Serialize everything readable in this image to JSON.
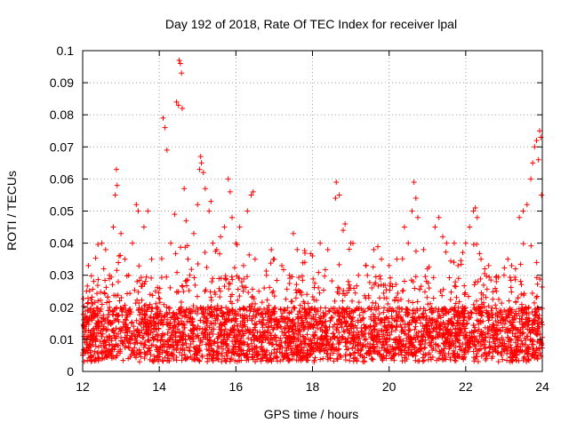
{
  "chart_data": {
    "type": "scatter",
    "title": "Day 192 of 2018, Rate Of TEC Index for receiver lpal",
    "xlabel": "GPS time / hours",
    "ylabel": "ROTI / TECUs",
    "xlim": [
      12,
      24
    ],
    "ylim": [
      0,
      0.1
    ],
    "x_ticks": [
      12,
      14,
      16,
      18,
      20,
      22,
      24
    ],
    "x_tick_labels": [
      "12",
      "14",
      "16",
      "18",
      "20",
      "22",
      "24"
    ],
    "y_ticks": [
      0,
      0.01,
      0.02,
      0.03,
      0.04,
      0.05,
      0.06,
      0.07,
      0.08,
      0.09,
      0.1
    ],
    "y_tick_labels": [
      "0",
      "0.01",
      "0.02",
      "0.03",
      "0.04",
      "0.05",
      "0.06",
      "0.07",
      "0.08",
      "0.09",
      "0.1"
    ],
    "grid": true,
    "marker": "+",
    "series": [
      {
        "name": "ROTI",
        "color": "#ff0000",
        "points": [
          [
            12.05,
            0.014
          ],
          [
            12.1,
            0.025
          ],
          [
            12.15,
            0.033
          ],
          [
            12.2,
            0.012
          ],
          [
            12.3,
            0.018
          ],
          [
            12.4,
            0.022
          ],
          [
            12.5,
            0.04
          ],
          [
            12.55,
            0.032
          ],
          [
            12.6,
            0.038
          ],
          [
            12.7,
            0.03
          ],
          [
            12.8,
            0.045
          ],
          [
            12.85,
            0.055
          ],
          [
            12.88,
            0.063
          ],
          [
            12.9,
            0.058
          ],
          [
            12.95,
            0.036
          ],
          [
            13.0,
            0.043
          ],
          [
            13.1,
            0.035
          ],
          [
            13.2,
            0.03
          ],
          [
            13.3,
            0.04
          ],
          [
            13.4,
            0.052
          ],
          [
            13.45,
            0.05
          ],
          [
            13.6,
            0.045
          ],
          [
            13.7,
            0.05
          ],
          [
            13.8,
            0.035
          ],
          [
            13.9,
            0.025
          ],
          [
            14.1,
            0.079
          ],
          [
            14.15,
            0.076
          ],
          [
            14.2,
            0.069
          ],
          [
            14.3,
            0.04
          ],
          [
            14.4,
            0.049
          ],
          [
            14.45,
            0.084
          ],
          [
            14.5,
            0.083
          ],
          [
            14.52,
            0.097
          ],
          [
            14.55,
            0.096
          ],
          [
            14.58,
            0.093
          ],
          [
            14.6,
            0.082
          ],
          [
            14.65,
            0.057
          ],
          [
            14.7,
            0.047
          ],
          [
            14.75,
            0.035
          ],
          [
            14.8,
            0.03
          ],
          [
            14.9,
            0.043
          ],
          [
            15.0,
            0.052
          ],
          [
            15.05,
            0.063
          ],
          [
            15.08,
            0.067
          ],
          [
            15.1,
            0.065
          ],
          [
            15.15,
            0.062
          ],
          [
            15.2,
            0.057
          ],
          [
            15.3,
            0.05
          ],
          [
            15.35,
            0.053
          ],
          [
            15.4,
            0.04
          ],
          [
            15.5,
            0.038
          ],
          [
            15.6,
            0.042
          ],
          [
            15.7,
            0.045
          ],
          [
            15.8,
            0.06
          ],
          [
            15.85,
            0.056
          ],
          [
            15.9,
            0.048
          ],
          [
            16.0,
            0.04
          ],
          [
            16.1,
            0.045
          ],
          [
            16.2,
            0.033
          ],
          [
            16.3,
            0.05
          ],
          [
            16.4,
            0.055
          ],
          [
            16.45,
            0.056
          ],
          [
            16.5,
            0.035
          ],
          [
            16.6,
            0.025
          ],
          [
            16.8,
            0.03
          ],
          [
            17.0,
            0.035
          ],
          [
            17.2,
            0.033
          ],
          [
            17.4,
            0.03
          ],
          [
            17.5,
            0.043
          ],
          [
            17.6,
            0.038
          ],
          [
            17.8,
            0.034
          ],
          [
            18.0,
            0.036
          ],
          [
            18.2,
            0.04
          ],
          [
            18.4,
            0.038
          ],
          [
            18.6,
            0.054
          ],
          [
            18.62,
            0.059
          ],
          [
            18.7,
            0.055
          ],
          [
            18.8,
            0.044
          ],
          [
            18.85,
            0.046
          ],
          [
            19.0,
            0.04
          ],
          [
            19.2,
            0.03
          ],
          [
            19.4,
            0.033
          ],
          [
            19.6,
            0.038
          ],
          [
            19.8,
            0.035
          ],
          [
            20.0,
            0.033
          ],
          [
            20.2,
            0.035
          ],
          [
            20.4,
            0.045
          ],
          [
            20.5,
            0.04
          ],
          [
            20.6,
            0.05
          ],
          [
            20.65,
            0.059
          ],
          [
            20.7,
            0.054
          ],
          [
            20.75,
            0.048
          ],
          [
            20.9,
            0.038
          ],
          [
            21.0,
            0.032
          ],
          [
            21.2,
            0.045
          ],
          [
            21.3,
            0.048
          ],
          [
            21.4,
            0.042
          ],
          [
            21.5,
            0.04
          ],
          [
            21.7,
            0.04
          ],
          [
            21.8,
            0.033
          ],
          [
            22.0,
            0.04
          ],
          [
            22.1,
            0.045
          ],
          [
            22.2,
            0.05
          ],
          [
            22.25,
            0.051
          ],
          [
            22.3,
            0.048
          ],
          [
            22.4,
            0.035
          ],
          [
            22.5,
            0.032
          ],
          [
            22.6,
            0.033
          ],
          [
            22.8,
            0.028
          ],
          [
            23.0,
            0.03
          ],
          [
            23.1,
            0.035
          ],
          [
            23.2,
            0.033
          ],
          [
            23.3,
            0.032
          ],
          [
            23.4,
            0.048
          ],
          [
            23.5,
            0.05
          ],
          [
            23.6,
            0.052
          ],
          [
            23.7,
            0.06
          ],
          [
            23.75,
            0.065
          ],
          [
            23.8,
            0.07
          ],
          [
            23.85,
            0.072
          ],
          [
            23.9,
            0.066
          ],
          [
            23.93,
            0.075
          ],
          [
            23.96,
            0.073
          ],
          [
            23.98,
            0.055
          ]
        ]
      }
    ]
  }
}
